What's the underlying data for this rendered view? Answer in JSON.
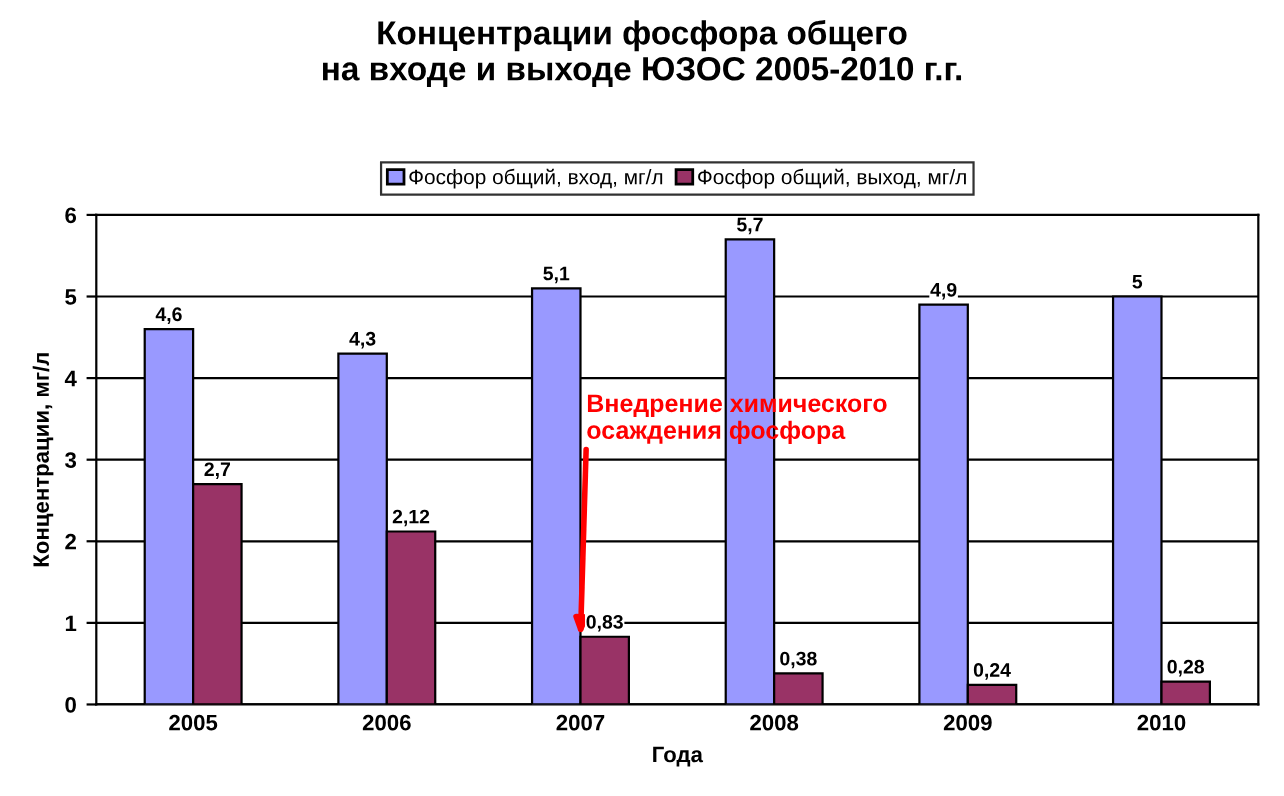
{
  "chart_data": {
    "type": "bar",
    "title": "Концентрации фосфора общего\nна входе и выходе ЮЗОС 2005-2010 г.г.",
    "xlabel": "Года",
    "ylabel": "Концентрации, мг/л",
    "categories": [
      "2005",
      "2006",
      "2007",
      "2008",
      "2009",
      "2010"
    ],
    "series": [
      {
        "name": "Фосфор общий, вход, мг/л",
        "color": "#9999ff",
        "values": [
          4.6,
          4.3,
          5.1,
          5.7,
          4.9,
          5
        ],
        "value_labels": [
          "4,6",
          "4,3",
          "5,1",
          "5,7",
          "4,9",
          "5"
        ]
      },
      {
        "name": "Фосфор общий, выход, мг/л",
        "color": "#993366",
        "values": [
          2.7,
          2.12,
          0.83,
          0.38,
          0.24,
          0.28
        ],
        "value_labels": [
          "2,7",
          "2,12",
          "0,83",
          "0,38",
          "0,24",
          "0,28"
        ]
      }
    ],
    "ylim": [
      0,
      6
    ],
    "yticks": [
      0,
      1,
      2,
      3,
      4,
      5,
      6
    ],
    "grid": "y",
    "legend": "top",
    "annotations": [
      {
        "text": "Внедрение химического\nосаждения фосфора",
        "x": "2007",
        "y": 0.83
      }
    ]
  }
}
